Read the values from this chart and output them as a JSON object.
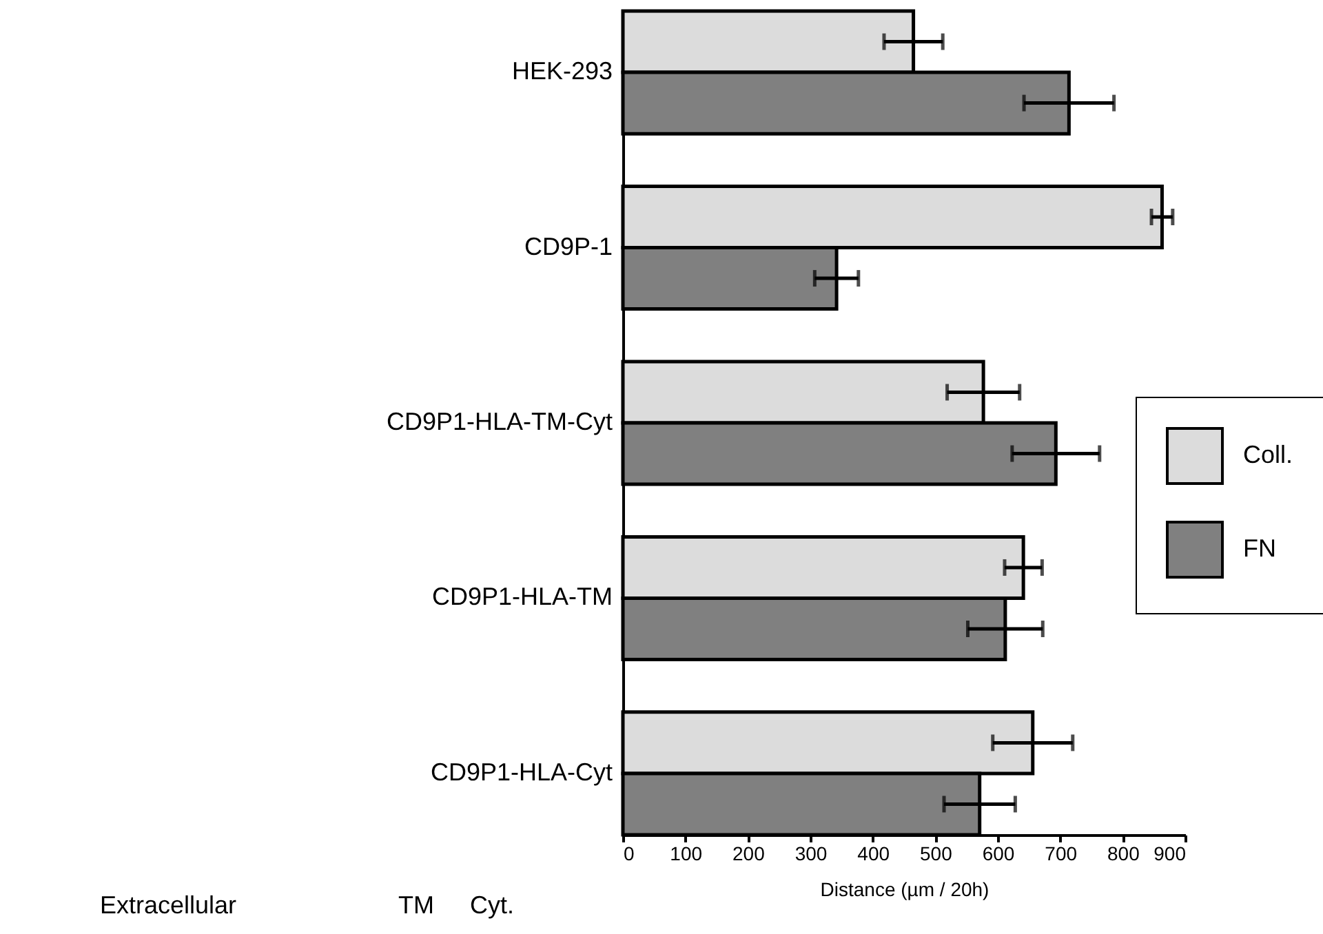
{
  "chart_data": {
    "type": "bar",
    "orientation": "horizontal",
    "categories": [
      "HEK-293",
      "CD9P-1",
      "CD9P1-HLA-TM-Cyt",
      "CD9P1-HLA-TM",
      "CD9P1-HLA-Cyt"
    ],
    "series": [
      {
        "name": "Coll.",
        "color": "#dcdcdc",
        "values": [
          465,
          863,
          577,
          641,
          656
        ],
        "errors": [
          47,
          17,
          58,
          30,
          64
        ]
      },
      {
        "name": "FN",
        "color": "#808080",
        "values": [
          714,
          342,
          693,
          612,
          571
        ],
        "errors": [
          72,
          35,
          70,
          60,
          57
        ]
      }
    ],
    "xlabel": "Distance (µm / 20h)",
    "xlim": [
      0,
      900
    ],
    "xticks": [
      0,
      100,
      200,
      300,
      400,
      500,
      600,
      700,
      800,
      900
    ],
    "annotations": [
      "Extracellular",
      "TM",
      "Cyt."
    ],
    "legend": "right",
    "grid": false
  }
}
